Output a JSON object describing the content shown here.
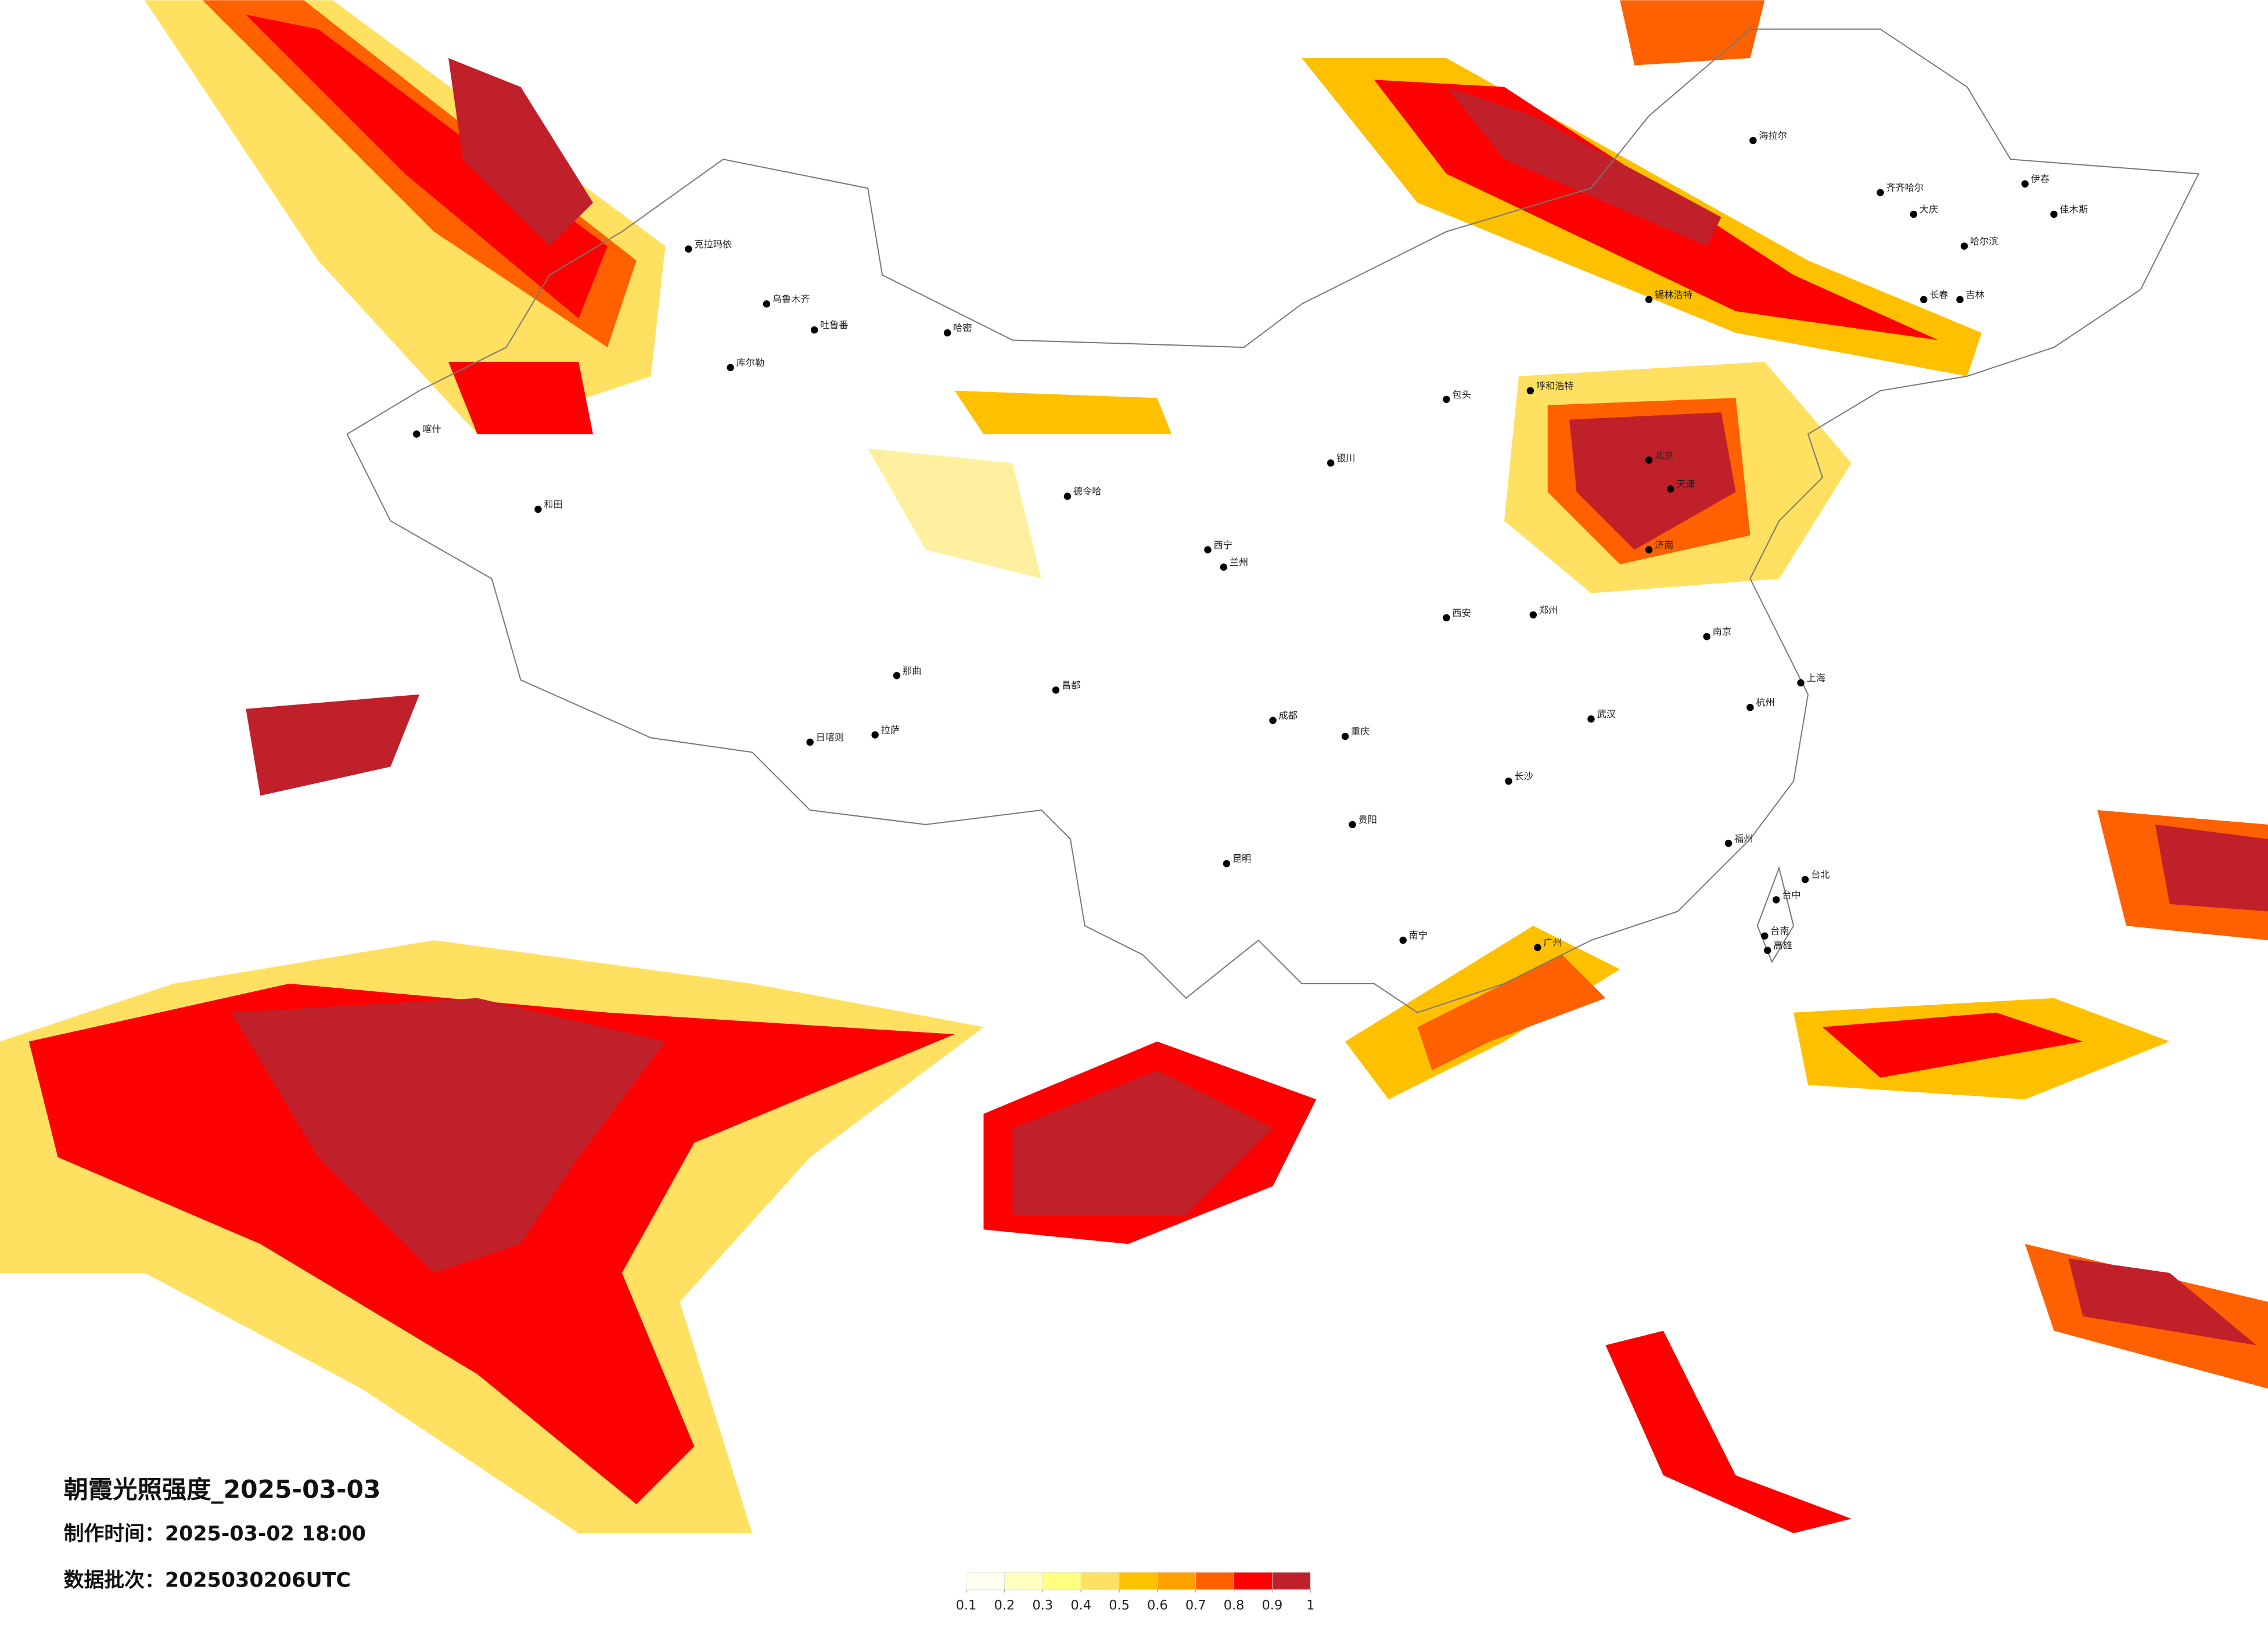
{
  "map": {
    "title": "朝霞光照强度_2025-03-03",
    "make_time_label": "制作时间：",
    "make_time": "2025-03-02 18:00",
    "batch_label": "数据批次：",
    "batch": "2025030206UTC",
    "legend": {
      "colors": [
        "#fffff0",
        "#ffffc0",
        "#ffff80",
        "#ffe060",
        "#ffc000",
        "#ffa000",
        "#ff6000",
        "#ff0000",
        "#c0202a"
      ],
      "ticks": [
        0.1,
        0.2,
        0.3,
        0.4,
        0.5,
        0.6,
        0.7,
        0.8,
        0.9,
        1
      ]
    },
    "cities": [
      "克拉玛依",
      "乌鲁木齐",
      "吐鲁番",
      "哈密",
      "库尔勒",
      "喀什",
      "和田",
      "德令哈",
      "拉萨",
      "日喀则",
      "那曲",
      "昌都",
      "呼和浩特",
      "包头",
      "银川",
      "西宁",
      "兰州",
      "西安",
      "成都",
      "重庆",
      "贵阳",
      "昆明",
      "南宁",
      "广州",
      "长沙",
      "武汉",
      "南京",
      "上海",
      "杭州",
      "福州",
      "台北",
      "台中",
      "台南",
      "高雄",
      "北京",
      "天津",
      "济南",
      "郑州",
      "哈尔滨",
      "长春",
      "吉林",
      "齐齐哈尔",
      "大庆",
      "海拉尔",
      "锡林浩特",
      "伊春",
      "佳木斯"
    ]
  }
}
